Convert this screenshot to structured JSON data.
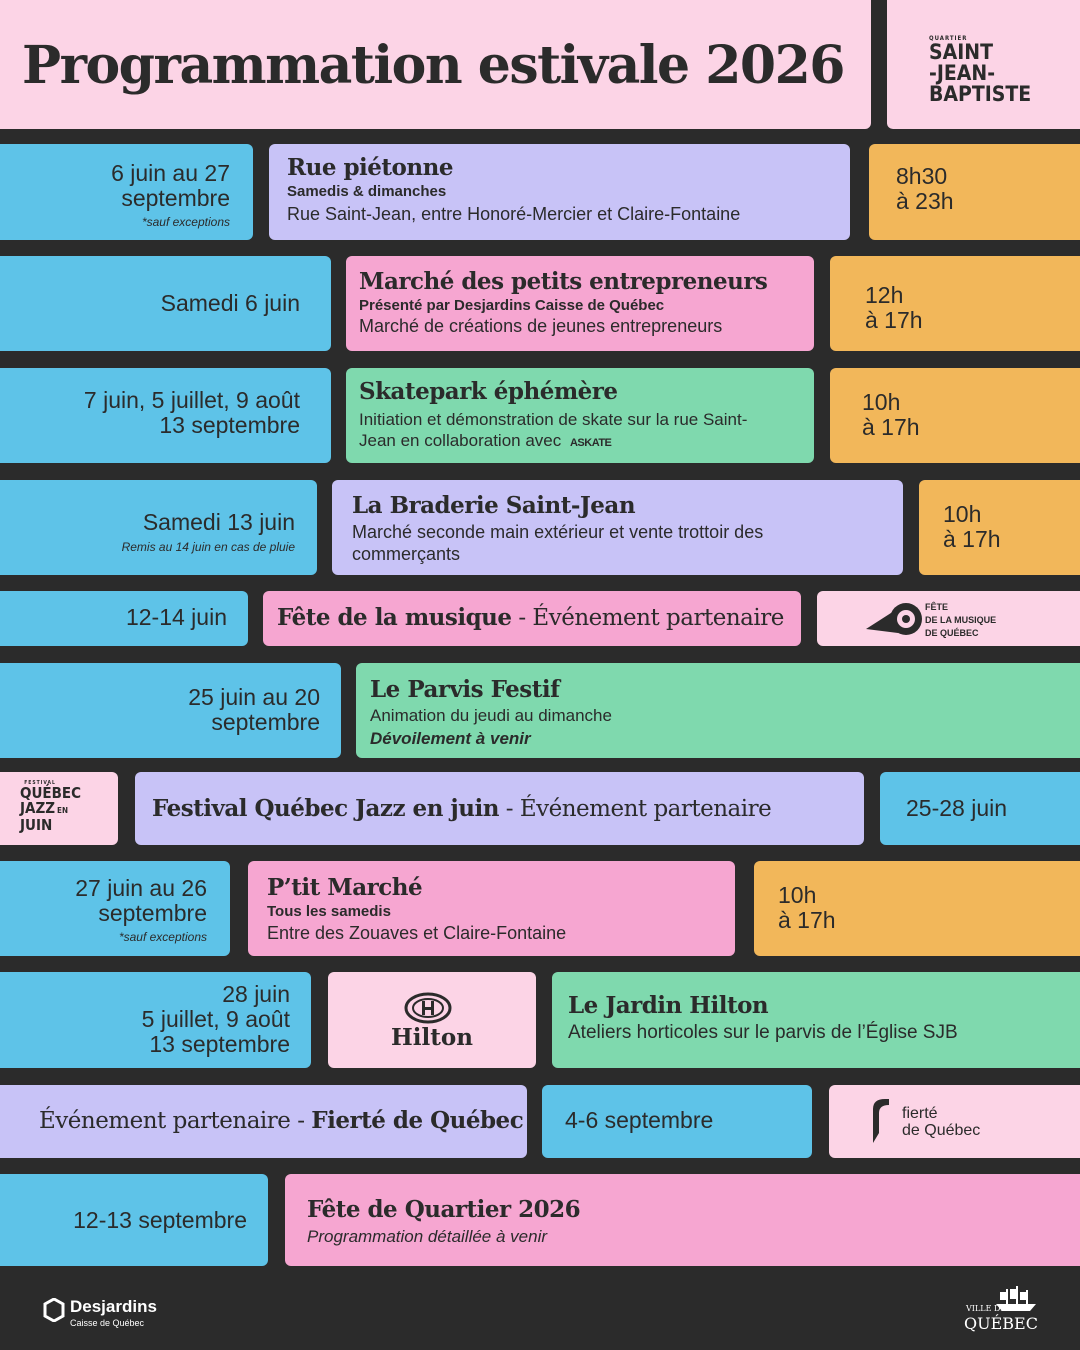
{
  "header": {
    "title": "Programmation estivale 2026",
    "logo": {
      "small": "QUARTIER",
      "l1": "SAINT",
      "l2": "-JEAN-",
      "l3": "BAPTISTE"
    }
  },
  "events": [
    {
      "date_line1": "6 juin au 27",
      "date_line2": "septembre",
      "note": "*sauf exceptions",
      "title": "Rue piétonne",
      "subtitle": "Samedis & dimanches",
      "description": "Rue Saint-Jean, entre Honoré-Mercier et Claire-Fontaine",
      "time_line1": "8h30",
      "time_line2": "à 23h"
    },
    {
      "date": "Samedi 6 juin",
      "title": "Marché des petits entrepreneurs",
      "subtitle": "Présenté par Desjardins Caisse de Québec",
      "description": "Marché de créations de jeunes entrepreneurs",
      "time_line1": "12h",
      "time_line2": "à 17h"
    },
    {
      "date_line1": "7 juin, 5 juillet, 9 août",
      "date_line2": "13 septembre",
      "title": "Skatepark éphémère",
      "description_line1": "Initiation et démonstration de skate sur la rue Saint-",
      "description_line2": "Jean en collaboration avec",
      "partner_logo": "ASKATE",
      "time_line1": "10h",
      "time_line2": "à 17h"
    },
    {
      "date": "Samedi 13 juin",
      "note": "Remis au 14 juin en cas de pluie",
      "title": "La Braderie Saint-Jean",
      "description_line1": "Marché seconde main extérieur et vente trottoir des",
      "description_line2": "commerçants",
      "time_line1": "10h",
      "time_line2": "à 17h"
    },
    {
      "date": "12-14 juin",
      "title": "Fête de la musique",
      "suffix": " - Événement partenaire",
      "logo": {
        "l1": "FÊTE",
        "l2": "DE LA MUSIQUE",
        "l3": "DE QUÉBEC"
      }
    },
    {
      "date_line1": "25 juin au 20",
      "date_line2": "septembre",
      "title": "Le Parvis Festif",
      "description": "Animation du jeudi au dimanche",
      "emphasis": "Dévoilement à venir"
    },
    {
      "logo": {
        "small": "FESTIVAL",
        "l1": "QUÉBEC",
        "l2": "JAZZ",
        "l2b": "EN",
        "l3": "JUIN"
      },
      "title": "Festival Québec Jazz en juin",
      "suffix": " - Événement partenaire",
      "date": "25-28 juin"
    },
    {
      "date_line1": "27 juin au 26",
      "date_line2": "septembre",
      "note": "*sauf exceptions",
      "title": "P’tit Marché",
      "subtitle": "Tous les samedis",
      "description": "Entre des Zouaves et Claire-Fontaine",
      "time_line1": "10h",
      "time_line2": "à 17h"
    },
    {
      "date_line1": "28 juin",
      "date_line2": "5 juillet, 9 août",
      "date_line3": "13 septembre",
      "logo_text": "Hilton",
      "title": "Le Jardin Hilton",
      "description": "Ateliers horticoles sur le parvis de l’Église SJB"
    },
    {
      "prefix": "Événement partenaire - ",
      "title": "Fierté de Québec",
      "date": "4-6 septembre",
      "logo": {
        "l1": "fierté",
        "l2": "de Québec"
      }
    },
    {
      "date": "12-13 septembre",
      "title": "Fête de Quartier 2026",
      "emphasis": "Programmation détaillée à venir"
    }
  ],
  "footer": {
    "sponsor_name": "Desjardins",
    "sponsor_sub": "Caisse de Québec",
    "city_small": "VILLE DE",
    "city_name": "QUÉBEC"
  },
  "colors": {
    "background": "#2b2b2b",
    "blue": "#5ec3e8",
    "lavender": "#c8c3f7",
    "pink": "#f6a6d1",
    "green": "#7fd9ae",
    "orange": "#f2b75a",
    "light_pink": "#fcd4e6"
  }
}
